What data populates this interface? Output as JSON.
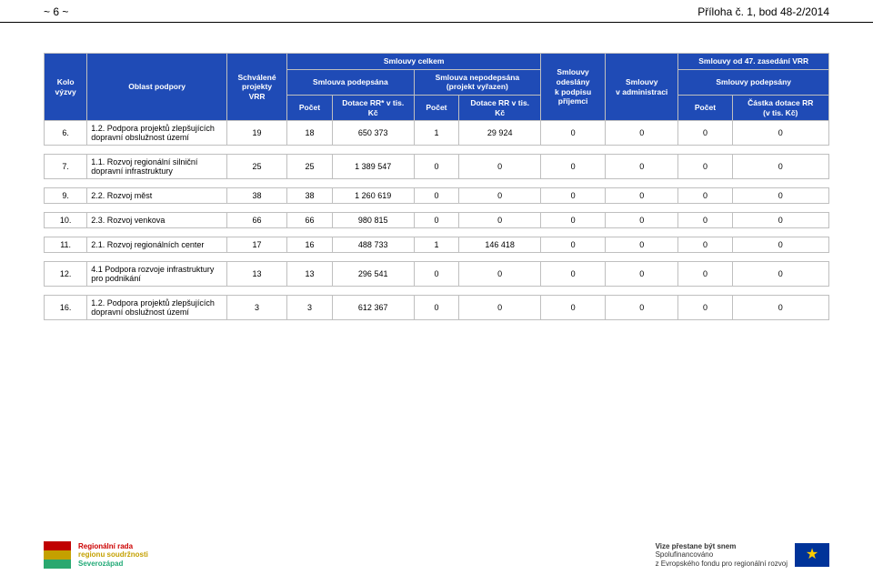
{
  "page": {
    "left": "~ 6 ~",
    "right": "Příloha č. 1, bod 48-2/2014"
  },
  "colors": {
    "header_bg": "#1f4bb6",
    "header_fg": "#ffffff",
    "border": "#bfbfbf",
    "text": "#000000",
    "bg": "#ffffff"
  },
  "header": {
    "kolo": "Kolo\nvýzvy",
    "oblast": "Oblast podpory",
    "vrr": "Schválené\nprojekty\nVRR",
    "celkem": "Smlouvy celkem",
    "podepsana": "Smlouva podepsána",
    "nepodepsana": "Smlouva nepodepsána\n(projekt vyřazen)",
    "pocet": "Počet",
    "dotace_rr_star": "Dotace RR* v tis.\nKč",
    "dotace_rr": "Dotace RR v tis.\nKč",
    "odeslany": "Smlouvy\nodeslány\nk podpisu\npříjemci",
    "admin": "Smlouvy\nv administraci",
    "od47": "Smlouvy od 47. zasedání VRR",
    "podepsany": "Smlouvy podepsány",
    "castka": "Částka dotace RR\n(v tis. Kč)"
  },
  "rows": [
    {
      "kolo": "6.",
      "oblast": "1.2. Podpora projektů zlepšujících dopravní obslužnost území",
      "vrr": "19",
      "p1": "18",
      "d1": "650 373",
      "p2": "1",
      "d2": "29 924",
      "odes": "0",
      "admin": "0",
      "p3": "0",
      "cast": "0"
    },
    {
      "kolo": "7.",
      "oblast": "1.1. Rozvoj regionální silniční dopravní infrastruktury",
      "vrr": "25",
      "p1": "25",
      "d1": "1 389 547",
      "p2": "0",
      "d2": "0",
      "odes": "0",
      "admin": "0",
      "p3": "0",
      "cast": "0"
    },
    {
      "kolo": "9.",
      "oblast": "2.2. Rozvoj měst",
      "vrr": "38",
      "p1": "38",
      "d1": "1 260 619",
      "p2": "0",
      "d2": "0",
      "odes": "0",
      "admin": "0",
      "p3": "0",
      "cast": "0"
    },
    {
      "kolo": "10.",
      "oblast": "2.3. Rozvoj venkova",
      "vrr": "66",
      "p1": "66",
      "d1": "980 815",
      "p2": "0",
      "d2": "0",
      "odes": "0",
      "admin": "0",
      "p3": "0",
      "cast": "0"
    },
    {
      "kolo": "11.",
      "oblast": "2.1. Rozvoj regionálních center",
      "vrr": "17",
      "p1": "16",
      "d1": "488 733",
      "p2": "1",
      "d2": "146 418",
      "odes": "0",
      "admin": "0",
      "p3": "0",
      "cast": "0"
    },
    {
      "kolo": "12.",
      "oblast": "4.1 Podpora rozvoje infrastruktury pro podnikání",
      "vrr": "13",
      "p1": "13",
      "d1": "296 541",
      "p2": "0",
      "d2": "0",
      "odes": "0",
      "admin": "0",
      "p3": "0",
      "cast": "0"
    },
    {
      "kolo": "16.",
      "oblast": "1.2. Podpora projektů zlepšujících dopravní obslužnost území",
      "vrr": "3",
      "p1": "3",
      "d1": "612 367",
      "p2": "0",
      "d2": "0",
      "odes": "0",
      "admin": "0",
      "p3": "0",
      "cast": "0"
    }
  ],
  "footer": {
    "left1": "Regionální rada",
    "left2": "regionu soudržnosti",
    "left3": "Severozápad",
    "right1": "Vize přestane být snem",
    "right2": "Spolufinancováno",
    "right3": "z Evropského fondu pro regionální rozvoj",
    "logo_colors": [
      "#c00000",
      "#c4a000",
      "#2aa86f"
    ],
    "eu_bg": "#003399",
    "eu_star": "#ffcc00"
  }
}
